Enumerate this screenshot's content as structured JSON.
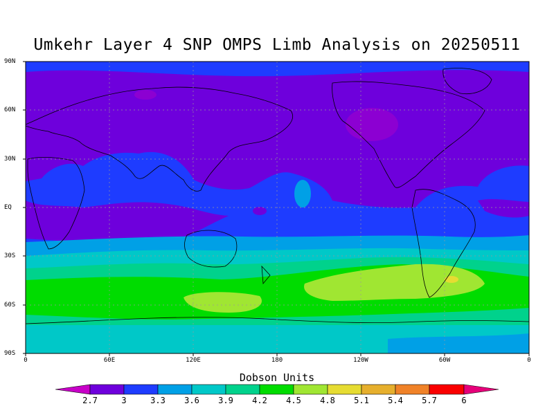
{
  "title": "Umkehr Layer 4 SNP OMPS Limb Analysis on 20250511",
  "map": {
    "lat_labels": [
      "90N",
      "60N",
      "30N",
      "EQ",
      "30S",
      "60S",
      "90S"
    ],
    "lon_labels": [
      "0",
      "60E",
      "120E",
      "180",
      "120W",
      "60W",
      "0"
    ],
    "grid": "dotted"
  },
  "colorbar": {
    "title": "Dobson Units",
    "ticks": [
      "2.7",
      "3",
      "3.3",
      "3.6",
      "3.9",
      "4.2",
      "4.5",
      "4.8",
      "5.1",
      "5.4",
      "5.7",
      "6"
    ],
    "colors": {
      "below": "#c800c8",
      "c2_7": "#6e00dc",
      "c3_0": "#1e3cff",
      "c3_3": "#00a0e6",
      "c3_6": "#00c8c8",
      "c3_9": "#00d28c",
      "c4_2": "#00dc00",
      "c4_5": "#a0e632",
      "c4_8": "#e6dc32",
      "c5_1": "#e6af2d",
      "c5_4": "#f08228",
      "c5_7": "#fa0000",
      "above": "#e6007a"
    }
  }
}
